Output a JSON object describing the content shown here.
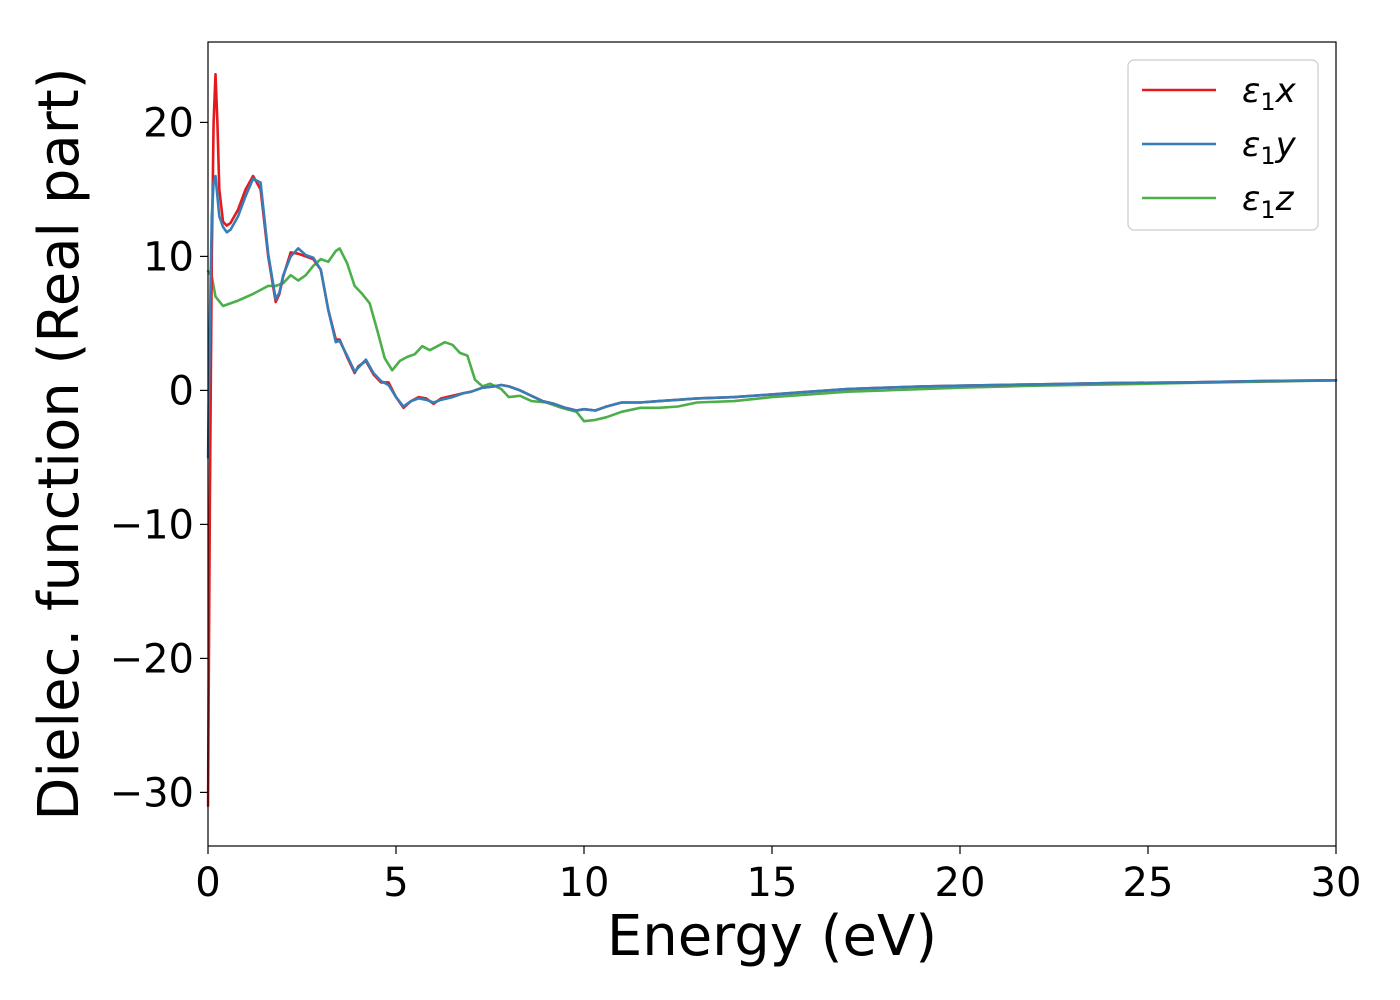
{
  "chart_data": {
    "type": "line",
    "title": "",
    "xlabel": "Energy (eV)",
    "ylabel": "Dielec. function (Real part)",
    "xlim": [
      0,
      30
    ],
    "ylim": [
      -34,
      26
    ],
    "xticks": [
      0,
      5,
      10,
      15,
      20,
      25,
      30
    ],
    "yticks": [
      -30,
      -20,
      -10,
      0,
      10,
      20
    ],
    "xtick_labels": [
      "0",
      "5",
      "10",
      "15",
      "20",
      "25",
      "30"
    ],
    "ytick_labels": [
      "−30",
      "−20",
      "−10",
      "0",
      "10",
      "20"
    ],
    "grid": false,
    "legend_position": "top-right",
    "series": [
      {
        "name": "ε1x",
        "legend_base": "ε",
        "legend_sub": "1",
        "legend_tail": "x",
        "color": "#e41a1c",
        "x": [
          0.0,
          0.05,
          0.1,
          0.15,
          0.2,
          0.25,
          0.3,
          0.4,
          0.5,
          0.6,
          0.8,
          1.0,
          1.2,
          1.4,
          1.6,
          1.8,
          1.9,
          2.0,
          2.2,
          2.4,
          2.6,
          2.8,
          3.0,
          3.2,
          3.4,
          3.5,
          3.7,
          3.9,
          4.0,
          4.2,
          4.4,
          4.6,
          4.8,
          5.0,
          5.2,
          5.4,
          5.6,
          5.8,
          6.0,
          6.2,
          6.5,
          6.8,
          7.0,
          7.3,
          7.6,
          7.8,
          8.0,
          8.3,
          8.6,
          8.9,
          9.2,
          9.5,
          9.8,
          10.0,
          10.3,
          10.6,
          11.0,
          11.5,
          12.0,
          12.5,
          13.0,
          14.0,
          15.0,
          16.0,
          17.0,
          18.0,
          19.0,
          20.0,
          22.0,
          24.0,
          26.0,
          28.0,
          30.0
        ],
        "y": [
          -31.0,
          -8.0,
          10.0,
          20.0,
          23.6,
          20.0,
          15.0,
          12.6,
          12.3,
          12.5,
          13.5,
          15.0,
          16.0,
          15.0,
          10.0,
          6.6,
          7.2,
          8.5,
          10.3,
          10.2,
          10.0,
          9.8,
          9.0,
          6.0,
          3.8,
          3.8,
          2.5,
          1.3,
          1.8,
          2.2,
          1.2,
          0.6,
          0.6,
          -0.5,
          -1.3,
          -0.8,
          -0.5,
          -0.6,
          -1.0,
          -0.6,
          -0.4,
          -0.2,
          -0.1,
          0.2,
          0.3,
          0.4,
          0.3,
          0.0,
          -0.4,
          -0.8,
          -1.0,
          -1.3,
          -1.5,
          -1.4,
          -1.5,
          -1.2,
          -0.9,
          -0.9,
          -0.8,
          -0.7,
          -0.6,
          -0.5,
          -0.3,
          -0.1,
          0.1,
          0.2,
          0.3,
          0.35,
          0.45,
          0.55,
          0.6,
          0.7,
          0.75
        ]
      },
      {
        "name": "ε1y",
        "legend_base": "ε",
        "legend_sub": "1",
        "legend_tail": "y",
        "color": "#377eb8",
        "x": [
          0.0,
          0.05,
          0.1,
          0.15,
          0.2,
          0.25,
          0.3,
          0.4,
          0.5,
          0.6,
          0.8,
          1.0,
          1.2,
          1.4,
          1.6,
          1.8,
          1.9,
          2.0,
          2.2,
          2.4,
          2.6,
          2.8,
          3.0,
          3.2,
          3.4,
          3.5,
          3.7,
          3.9,
          4.0,
          4.2,
          4.4,
          4.6,
          4.8,
          5.0,
          5.2,
          5.4,
          5.6,
          5.8,
          6.0,
          6.2,
          6.5,
          6.8,
          7.0,
          7.3,
          7.6,
          7.8,
          8.0,
          8.3,
          8.6,
          8.9,
          9.2,
          9.5,
          9.8,
          10.0,
          10.3,
          10.6,
          11.0,
          11.5,
          12.0,
          12.5,
          13.0,
          14.0,
          15.0,
          16.0,
          17.0,
          18.0,
          19.0,
          20.0,
          22.0,
          24.0,
          26.0,
          28.0,
          30.0
        ],
        "y": [
          -5.0,
          5.0,
          13.0,
          15.5,
          16.0,
          14.5,
          13.0,
          12.2,
          11.8,
          12.0,
          13.0,
          14.5,
          15.8,
          15.5,
          10.2,
          6.8,
          7.3,
          8.6,
          10.0,
          10.6,
          10.1,
          9.9,
          9.0,
          6.0,
          3.6,
          3.7,
          2.6,
          1.4,
          1.7,
          2.3,
          1.3,
          0.7,
          0.4,
          -0.5,
          -1.2,
          -0.8,
          -0.6,
          -0.7,
          -0.9,
          -0.7,
          -0.5,
          -0.2,
          -0.1,
          0.2,
          0.3,
          0.4,
          0.3,
          0.0,
          -0.4,
          -0.8,
          -1.0,
          -1.3,
          -1.5,
          -1.4,
          -1.5,
          -1.2,
          -0.9,
          -0.9,
          -0.8,
          -0.7,
          -0.6,
          -0.5,
          -0.3,
          -0.1,
          0.1,
          0.2,
          0.3,
          0.35,
          0.45,
          0.55,
          0.6,
          0.7,
          0.75
        ]
      },
      {
        "name": "ε1z",
        "legend_base": "ε",
        "legend_sub": "1",
        "legend_tail": "z",
        "color": "#4daf4a",
        "x": [
          0.0,
          0.1,
          0.2,
          0.4,
          0.8,
          1.2,
          1.6,
          1.8,
          2.0,
          2.2,
          2.4,
          2.6,
          2.8,
          3.0,
          3.2,
          3.4,
          3.5,
          3.7,
          3.9,
          4.1,
          4.3,
          4.5,
          4.7,
          4.9,
          5.1,
          5.3,
          5.5,
          5.7,
          5.9,
          6.1,
          6.3,
          6.5,
          6.7,
          6.9,
          7.1,
          7.3,
          7.5,
          7.8,
          8.0,
          8.3,
          8.6,
          9.0,
          9.4,
          9.8,
          10.0,
          10.3,
          10.6,
          11.0,
          11.5,
          12.0,
          12.5,
          13.0,
          14.0,
          15.0,
          16.0,
          17.0,
          18.0,
          19.0,
          20.0,
          22.0,
          24.0,
          26.0,
          28.0,
          30.0
        ],
        "y": [
          8.9,
          8.5,
          7.0,
          6.3,
          6.7,
          7.2,
          7.8,
          7.8,
          8.0,
          8.6,
          8.2,
          8.6,
          9.3,
          9.8,
          9.6,
          10.4,
          10.6,
          9.5,
          7.8,
          7.2,
          6.5,
          4.5,
          2.4,
          1.5,
          2.2,
          2.5,
          2.7,
          3.3,
          3.0,
          3.3,
          3.6,
          3.4,
          2.8,
          2.6,
          0.8,
          0.3,
          0.5,
          0.1,
          -0.5,
          -0.4,
          -0.8,
          -0.9,
          -1.3,
          -1.6,
          -2.3,
          -2.2,
          -2.0,
          -1.6,
          -1.3,
          -1.3,
          -1.2,
          -0.9,
          -0.8,
          -0.5,
          -0.3,
          -0.1,
          0.0,
          0.1,
          0.2,
          0.35,
          0.45,
          0.55,
          0.65,
          0.75
        ]
      }
    ]
  }
}
